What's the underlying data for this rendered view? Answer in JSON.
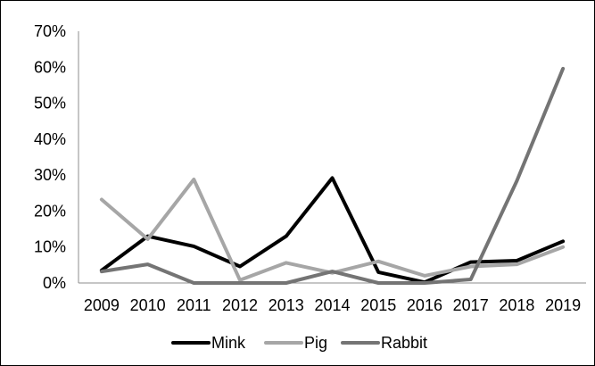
{
  "chart_data": {
    "type": "line",
    "title": "",
    "xlabel": "",
    "ylabel": "",
    "ylim": [
      0,
      70
    ],
    "y_ticks": [
      "0%",
      "10%",
      "20%",
      "30%",
      "40%",
      "50%",
      "60%",
      "70%"
    ],
    "y_tick_values": [
      0,
      10,
      20,
      30,
      40,
      50,
      60,
      70
    ],
    "categories": [
      "2009",
      "2010",
      "2011",
      "2012",
      "2013",
      "2014",
      "2015",
      "2016",
      "2017",
      "2018",
      "2019"
    ],
    "grid": false,
    "legend_position": "bottom",
    "series": [
      {
        "name": "Mink",
        "color": "#000000",
        "values": [
          3.5,
          13,
          10.2,
          4.6,
          13,
          29.2,
          3,
          0.2,
          5.8,
          6.2,
          11.6
        ]
      },
      {
        "name": "Pig",
        "color": "#a6a6a6",
        "values": [
          23.2,
          12.2,
          28.8,
          0.8,
          5.6,
          2.8,
          6,
          2,
          4.6,
          5.2,
          10
        ]
      },
      {
        "name": "Rabbit",
        "color": "#747474",
        "values": [
          3.2,
          5.2,
          0,
          0,
          0,
          3.2,
          0,
          0,
          1,
          28.4,
          59.6
        ]
      }
    ]
  }
}
